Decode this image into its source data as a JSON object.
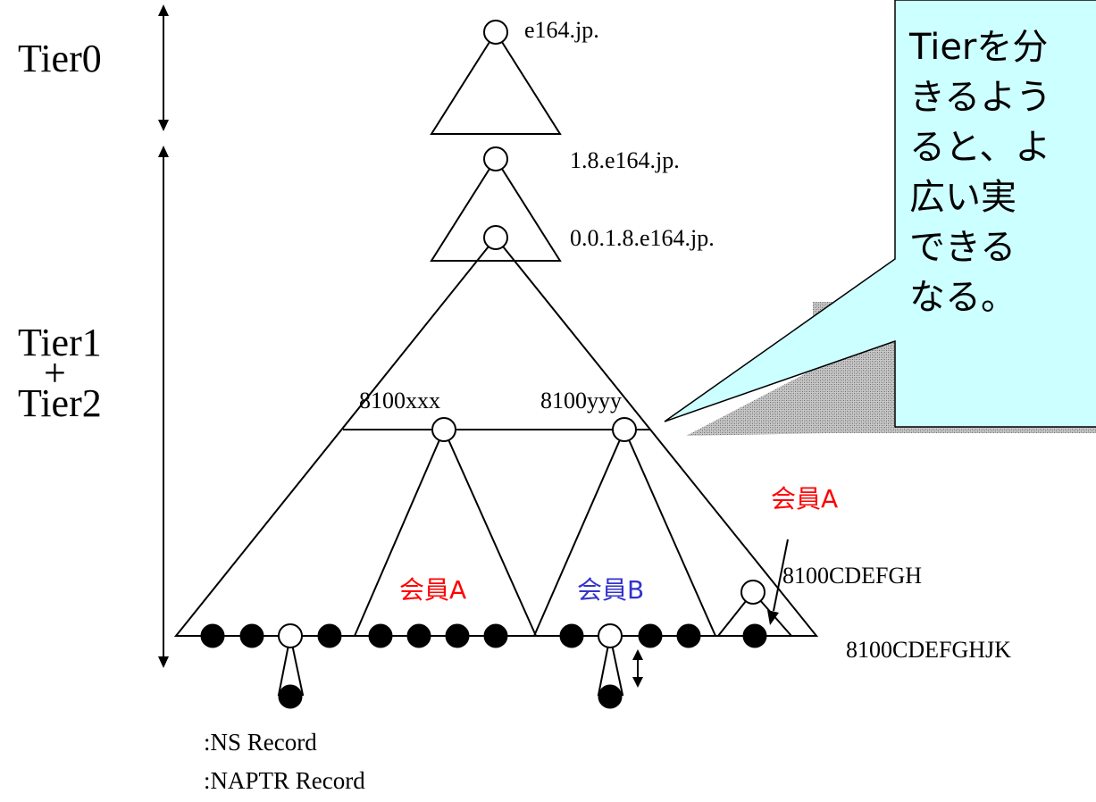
{
  "tiers": {
    "tier0": "Tier0",
    "tier12_line1": "Tier1",
    "tier12_plus": "+",
    "tier12_line2": "Tier2"
  },
  "domains": {
    "root": "e164.jp.",
    "level1": "1.8.e164.jp.",
    "level2": "0.0.1.8.e164.jp.",
    "xxx": "8100xxx",
    "yyy": "8100yyy",
    "cdefgh": "8100CDEFGH",
    "cdefghjk": "8100CDEFGHJK"
  },
  "members": {
    "a_left": "会員A",
    "b": "会員B",
    "a_right": "会員A"
  },
  "legend": {
    "ns": ":NS Record",
    "naptr": ":NAPTR Record"
  },
  "callout": {
    "lines": [
      "Tierを分",
      "きるよう",
      "ると、よ",
      "広い実",
      "できる",
      "なる。"
    ]
  },
  "colors": {
    "member_a": "#ff0000",
    "member_b": "#3333cc",
    "callout_fill": "#ccffff",
    "callout_shadow": "#9a9a9a"
  }
}
